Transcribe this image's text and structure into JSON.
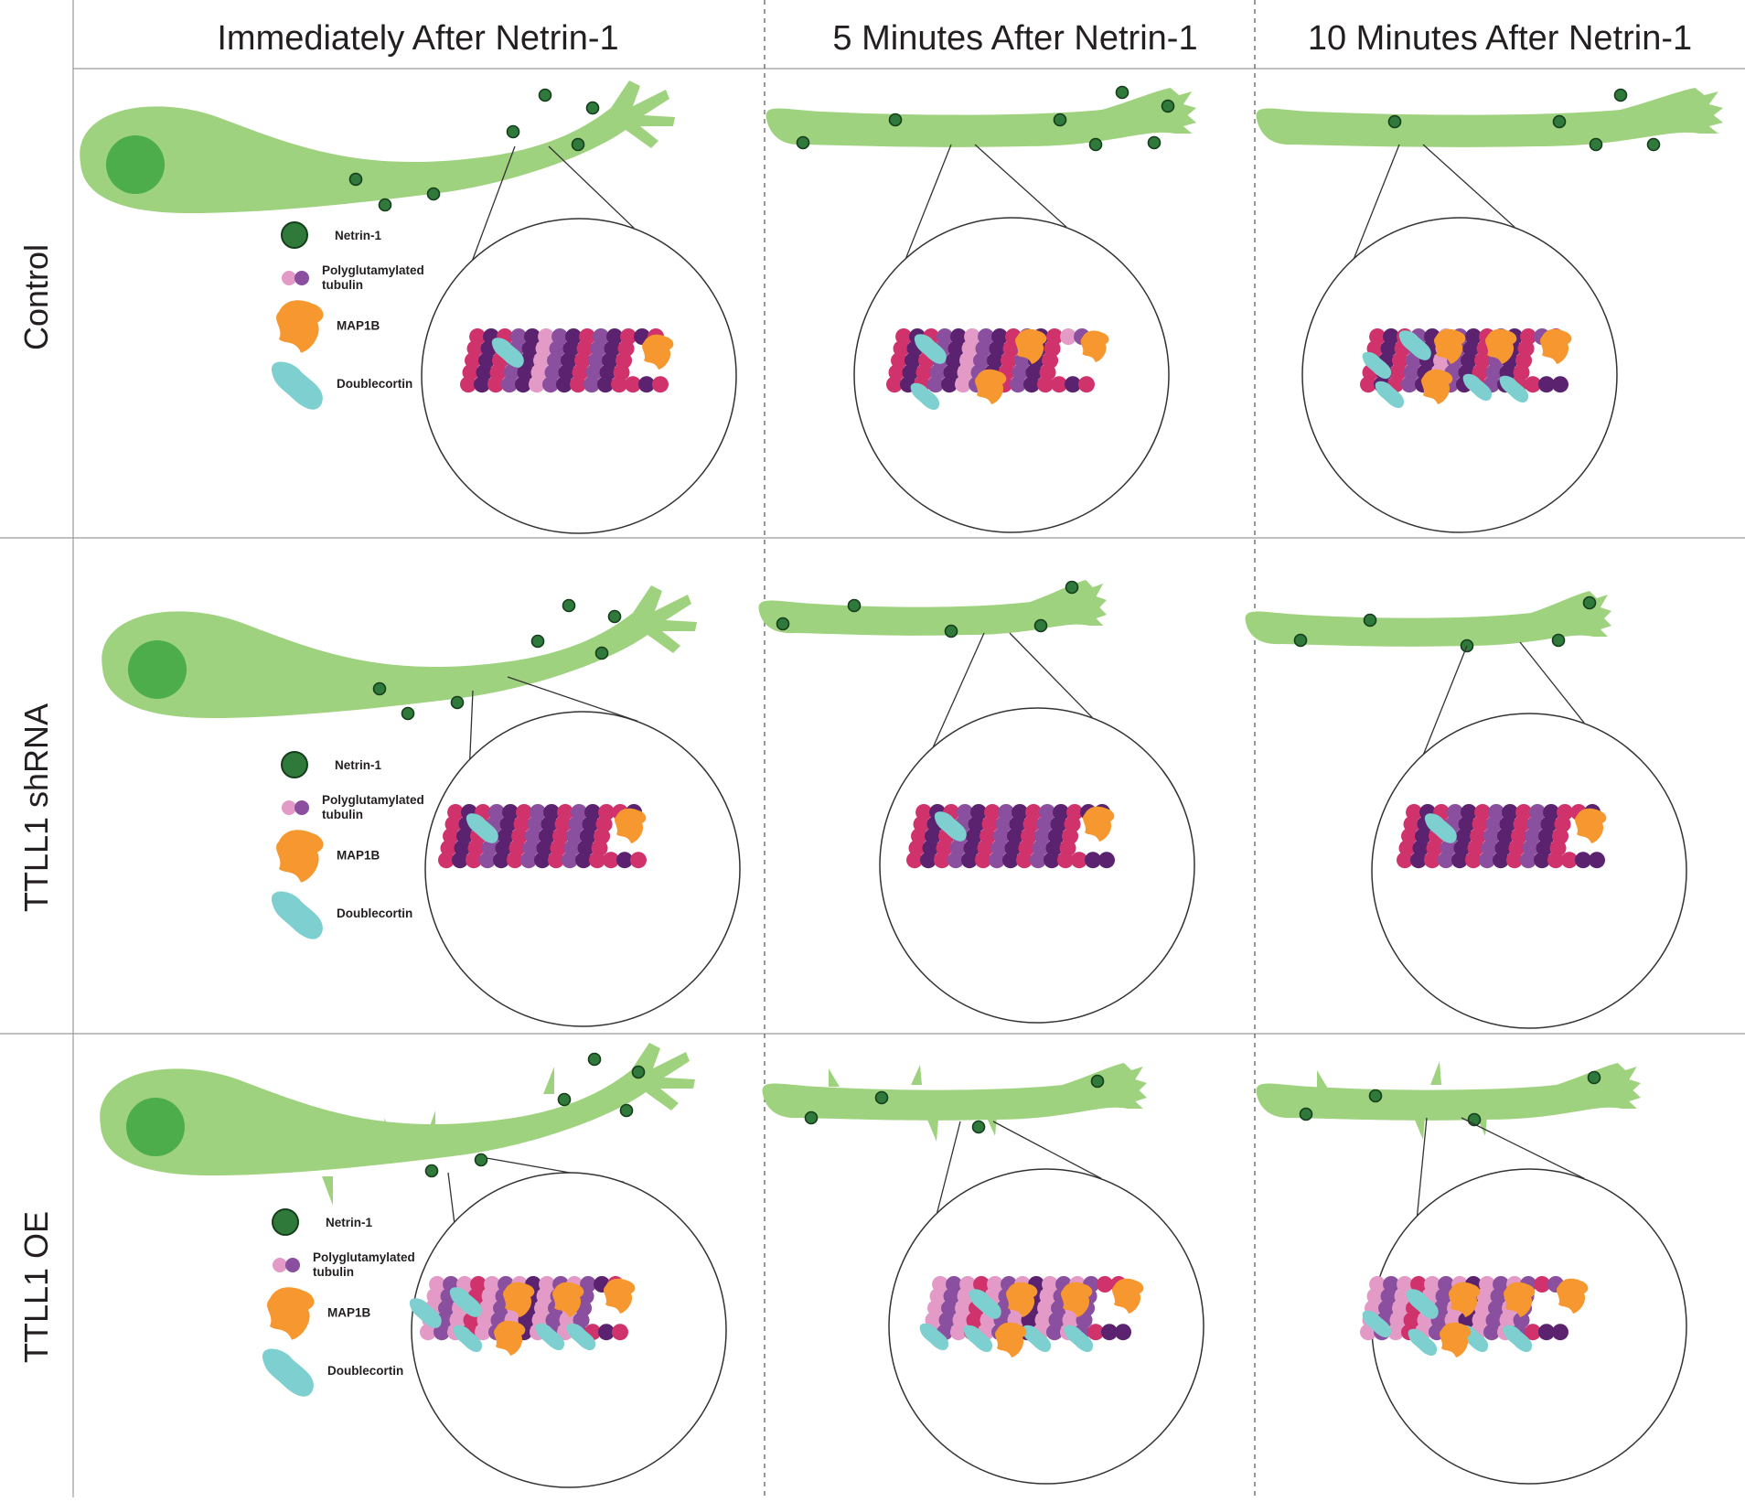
{
  "columns": [
    {
      "label": "Immediately After Netrin-1"
    },
    {
      "label": "5 Minutes After Netrin-1"
    },
    {
      "label": "10 Minutes After Netrin-1"
    }
  ],
  "rows": [
    {
      "label": "Control"
    },
    {
      "label": "TTLL1 shRNA"
    },
    {
      "label": "TTLL1 OE"
    }
  ],
  "legend": {
    "netrin": "Netrin-1",
    "polyglu_line1": "Polyglutamylated",
    "polyglu_line2": "tubulin",
    "map1b": "MAP1B",
    "doublecortin": "Doublecortin"
  },
  "colors": {
    "neuron": "#9fd27e",
    "nucleus": "#4cad4a",
    "netrin": "#2f7a3a",
    "map1b": "#f6982f",
    "doublecortin": "#7ecfcf",
    "tub_dark_purple": "#5b2270",
    "tub_crimson": "#d0326b",
    "tub_purple": "#8a4f9f",
    "tub_pink": "#e39ac6",
    "grid": "#9a9a9a"
  }
}
